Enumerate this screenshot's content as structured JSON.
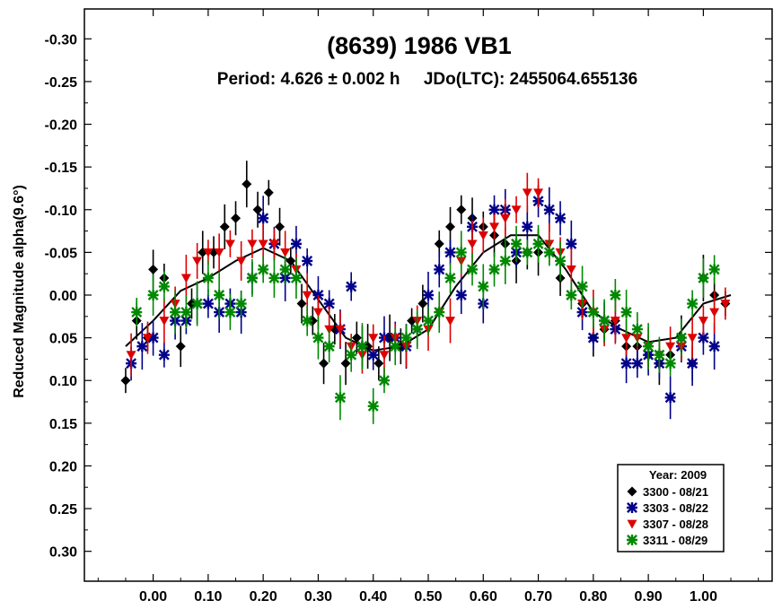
{
  "chart_data": {
    "type": "scatter",
    "title": "(8639) 1986 VB1",
    "subtitle": "Period: 4.626 ± 0.002 h     JDo(LTC): 2455064.655136",
    "xlabel": "",
    "ylabel": "Reduced Magnitude alpha(9.6°)",
    "xlim": [
      -0.125,
      1.125
    ],
    "ylim": [
      -0.335,
      0.335
    ],
    "y_inverted": true,
    "x_ticks": [
      0.0,
      0.1,
      0.2,
      0.3,
      0.4,
      0.5,
      0.6,
      0.7,
      0.8,
      0.9,
      1.0
    ],
    "x_tick_labels": [
      "0.00",
      "0.10",
      "0.20",
      "0.30",
      "0.40",
      "0.50",
      "0.60",
      "0.70",
      "0.80",
      "0.90",
      "1.00"
    ],
    "y_ticks": [
      -0.3,
      -0.25,
      -0.2,
      -0.15,
      -0.1,
      -0.05,
      0.0,
      0.05,
      0.1,
      0.15,
      0.2,
      0.25,
      0.3
    ],
    "y_tick_labels": [
      "-0.30",
      "-0.25",
      "-0.20",
      "-0.15",
      "-0.10",
      "-0.05",
      "0.00",
      "0.05",
      "0.10",
      "0.15",
      "0.20",
      "0.25",
      "0.30"
    ],
    "grid": false,
    "legend": {
      "title": "Year: 2009",
      "position": "bottom-right"
    },
    "fit_curve": {
      "name": "Fourier fit",
      "color": "#000000",
      "x": [
        -0.05,
        0.0,
        0.05,
        0.1,
        0.15,
        0.2,
        0.25,
        0.3,
        0.35,
        0.4,
        0.45,
        0.5,
        0.55,
        0.6,
        0.65,
        0.7,
        0.75,
        0.8,
        0.85,
        0.9,
        0.95,
        1.0,
        1.05
      ],
      "y": [
        0.06,
        0.03,
        -0.005,
        -0.02,
        -0.04,
        -0.055,
        -0.04,
        0.005,
        0.05,
        0.065,
        0.06,
        0.04,
        -0.01,
        -0.05,
        -0.07,
        -0.07,
        -0.03,
        0.02,
        0.04,
        0.055,
        0.05,
        0.01,
        0.0
      ]
    },
    "series": [
      {
        "name": "3300 - 08/21",
        "marker": "diamond",
        "color": "#000000",
        "x": [
          -0.05,
          -0.03,
          -0.01,
          0.0,
          0.02,
          0.05,
          0.07,
          0.09,
          0.11,
          0.13,
          0.15,
          0.17,
          0.19,
          0.21,
          0.23,
          0.25,
          0.27,
          0.29,
          0.31,
          0.33,
          0.35,
          0.37,
          0.39,
          0.41,
          0.43,
          0.45,
          0.47,
          0.49,
          0.52,
          0.54,
          0.56,
          0.58,
          0.6,
          0.62,
          0.64,
          0.66,
          0.68,
          0.7,
          0.74,
          0.78,
          0.8,
          0.82,
          0.84,
          0.86,
          0.88,
          0.9,
          0.92,
          0.94,
          0.96,
          0.98,
          1.0,
          1.02,
          1.04
        ],
        "y": [
          0.1,
          0.03,
          0.05,
          -0.03,
          -0.02,
          0.06,
          0.01,
          -0.05,
          -0.05,
          -0.08,
          -0.09,
          -0.13,
          -0.1,
          -0.12,
          -0.08,
          -0.04,
          0.01,
          0.03,
          0.08,
          0.04,
          0.08,
          0.05,
          0.06,
          0.08,
          0.05,
          0.06,
          0.03,
          0.01,
          -0.06,
          -0.08,
          -0.1,
          -0.09,
          -0.08,
          -0.07,
          -0.06,
          -0.04,
          -0.05,
          -0.05,
          -0.02,
          0.01,
          0.05,
          0.04,
          0.03,
          0.06,
          0.06,
          0.07,
          0.08,
          0.07,
          0.05,
          0.08,
          -0.02,
          0.0,
          0.01
        ]
      },
      {
        "name": "3303 - 08/22",
        "marker": "asterisk",
        "color": "#00008b",
        "x": [
          -0.04,
          -0.02,
          0.0,
          0.02,
          0.04,
          0.06,
          0.08,
          0.1,
          0.12,
          0.14,
          0.16,
          0.18,
          0.2,
          0.22,
          0.24,
          0.26,
          0.28,
          0.3,
          0.32,
          0.34,
          0.36,
          0.38,
          0.4,
          0.42,
          0.44,
          0.46,
          0.48,
          0.5,
          0.52,
          0.54,
          0.56,
          0.58,
          0.6,
          0.62,
          0.64,
          0.66,
          0.68,
          0.7,
          0.72,
          0.74,
          0.76,
          0.78,
          0.8,
          0.82,
          0.84,
          0.86,
          0.88,
          0.9,
          0.92,
          0.94,
          0.96,
          0.98,
          1.0,
          1.02
        ],
        "y": [
          0.08,
          0.06,
          0.05,
          0.07,
          0.03,
          0.03,
          0.01,
          0.01,
          0.02,
          0.01,
          0.02,
          -0.02,
          -0.09,
          -0.06,
          -0.02,
          -0.06,
          -0.04,
          0.0,
          0.01,
          0.04,
          -0.01,
          0.06,
          0.07,
          0.05,
          0.05,
          0.06,
          0.04,
          0.0,
          -0.03,
          -0.05,
          0.0,
          -0.08,
          0.01,
          -0.1,
          -0.1,
          -0.05,
          -0.08,
          -0.11,
          -0.1,
          -0.09,
          -0.06,
          0.02,
          0.05,
          0.03,
          0.04,
          0.08,
          0.08,
          0.07,
          0.08,
          0.12,
          0.06,
          0.08,
          0.05,
          0.06
        ]
      },
      {
        "name": "3307 - 08/28",
        "marker": "triangle-down",
        "color": "#dd0000",
        "x": [
          -0.04,
          -0.01,
          0.02,
          0.04,
          0.06,
          0.08,
          0.1,
          0.12,
          0.14,
          0.16,
          0.18,
          0.2,
          0.22,
          0.24,
          0.26,
          0.28,
          0.3,
          0.32,
          0.34,
          0.36,
          0.38,
          0.4,
          0.42,
          0.44,
          0.46,
          0.48,
          0.5,
          0.52,
          0.54,
          0.56,
          0.58,
          0.6,
          0.62,
          0.64,
          0.66,
          0.68,
          0.7,
          0.72,
          0.74,
          0.76,
          0.78,
          0.8,
          0.82,
          0.84,
          0.86,
          0.88,
          0.9,
          0.92,
          0.94,
          0.96,
          0.98,
          1.0,
          1.02,
          1.04
        ],
        "y": [
          0.07,
          0.05,
          0.03,
          0.01,
          -0.02,
          -0.04,
          -0.05,
          -0.05,
          -0.06,
          -0.04,
          -0.06,
          -0.06,
          -0.06,
          -0.05,
          -0.03,
          0.0,
          0.02,
          0.04,
          0.04,
          0.06,
          0.07,
          0.05,
          0.07,
          0.05,
          0.06,
          0.03,
          0.04,
          0.02,
          0.03,
          -0.04,
          -0.06,
          -0.07,
          -0.08,
          -0.09,
          -0.1,
          -0.12,
          -0.12,
          -0.06,
          -0.05,
          -0.03,
          0.01,
          0.02,
          0.04,
          0.03,
          0.05,
          0.05,
          0.06,
          0.07,
          0.06,
          0.06,
          0.05,
          0.03,
          0.02,
          0.01
        ]
      },
      {
        "name": "3311 - 08/29",
        "marker": "asterisk",
        "color": "#008800",
        "x": [
          -0.03,
          0.0,
          0.02,
          0.04,
          0.06,
          0.08,
          0.1,
          0.12,
          0.14,
          0.16,
          0.18,
          0.2,
          0.22,
          0.24,
          0.26,
          0.28,
          0.3,
          0.32,
          0.34,
          0.36,
          0.38,
          0.4,
          0.42,
          0.44,
          0.46,
          0.48,
          0.5,
          0.52,
          0.54,
          0.56,
          0.58,
          0.6,
          0.62,
          0.64,
          0.66,
          0.68,
          0.7,
          0.72,
          0.74,
          0.76,
          0.78,
          0.8,
          0.82,
          0.84,
          0.86,
          0.88,
          0.9,
          0.92,
          0.94,
          0.96,
          0.98,
          1.0,
          1.02
        ],
        "y": [
          0.02,
          0.0,
          -0.01,
          0.02,
          0.02,
          0.01,
          -0.02,
          0.0,
          0.02,
          0.01,
          -0.02,
          -0.03,
          -0.02,
          -0.03,
          -0.02,
          0.03,
          0.05,
          0.06,
          0.12,
          0.07,
          0.06,
          0.13,
          0.1,
          0.06,
          0.05,
          0.04,
          0.03,
          0.02,
          -0.02,
          -0.05,
          -0.03,
          -0.01,
          -0.03,
          -0.04,
          -0.06,
          -0.05,
          -0.06,
          -0.05,
          -0.04,
          0.0,
          -0.01,
          0.02,
          0.03,
          0.0,
          0.02,
          0.04,
          0.06,
          0.07,
          0.08,
          0.05,
          0.01,
          -0.02,
          -0.03
        ]
      }
    ]
  }
}
